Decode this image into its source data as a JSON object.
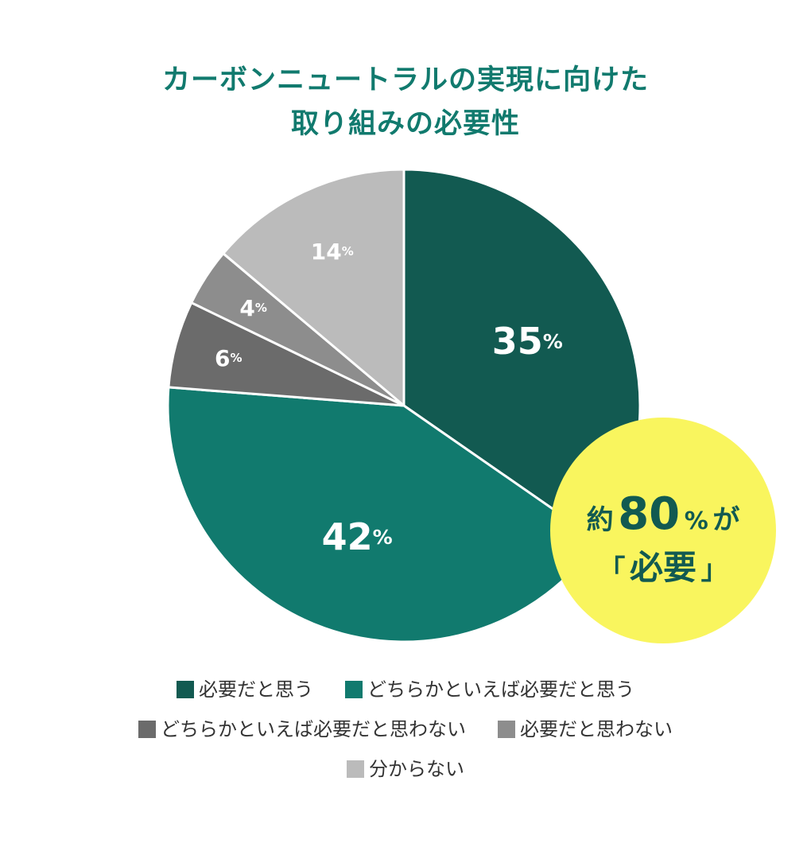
{
  "title": {
    "line1": "カーボンニュートラルの実現に向けた",
    "line2": "取り組みの必要性"
  },
  "chart_data": {
    "type": "pie",
    "unit": "%",
    "start": "12 o'clock, clockwise",
    "slices": [
      {
        "label": "必要だと思う",
        "value": 35,
        "color": "#125a51"
      },
      {
        "label": "どちらかといえば必要だと思う",
        "value": 42,
        "color": "#117a6e"
      },
      {
        "label": "どちらかといえば必要だと思わない",
        "value": 6,
        "color": "#6b6b6b"
      },
      {
        "label": "必要だと思わない",
        "value": 4,
        "color": "#8d8d8d"
      },
      {
        "label": "分からない",
        "value": 14,
        "color": "#bbbbbb"
      }
    ],
    "legend_placement": "bottom"
  },
  "callout": {
    "prefix": "約",
    "value": "80",
    "unit": "%",
    "suffix": "が",
    "quote_open": "「",
    "word": "必要",
    "quote_close": "」",
    "color": "#f9f55e",
    "text_color": "#125a51"
  }
}
